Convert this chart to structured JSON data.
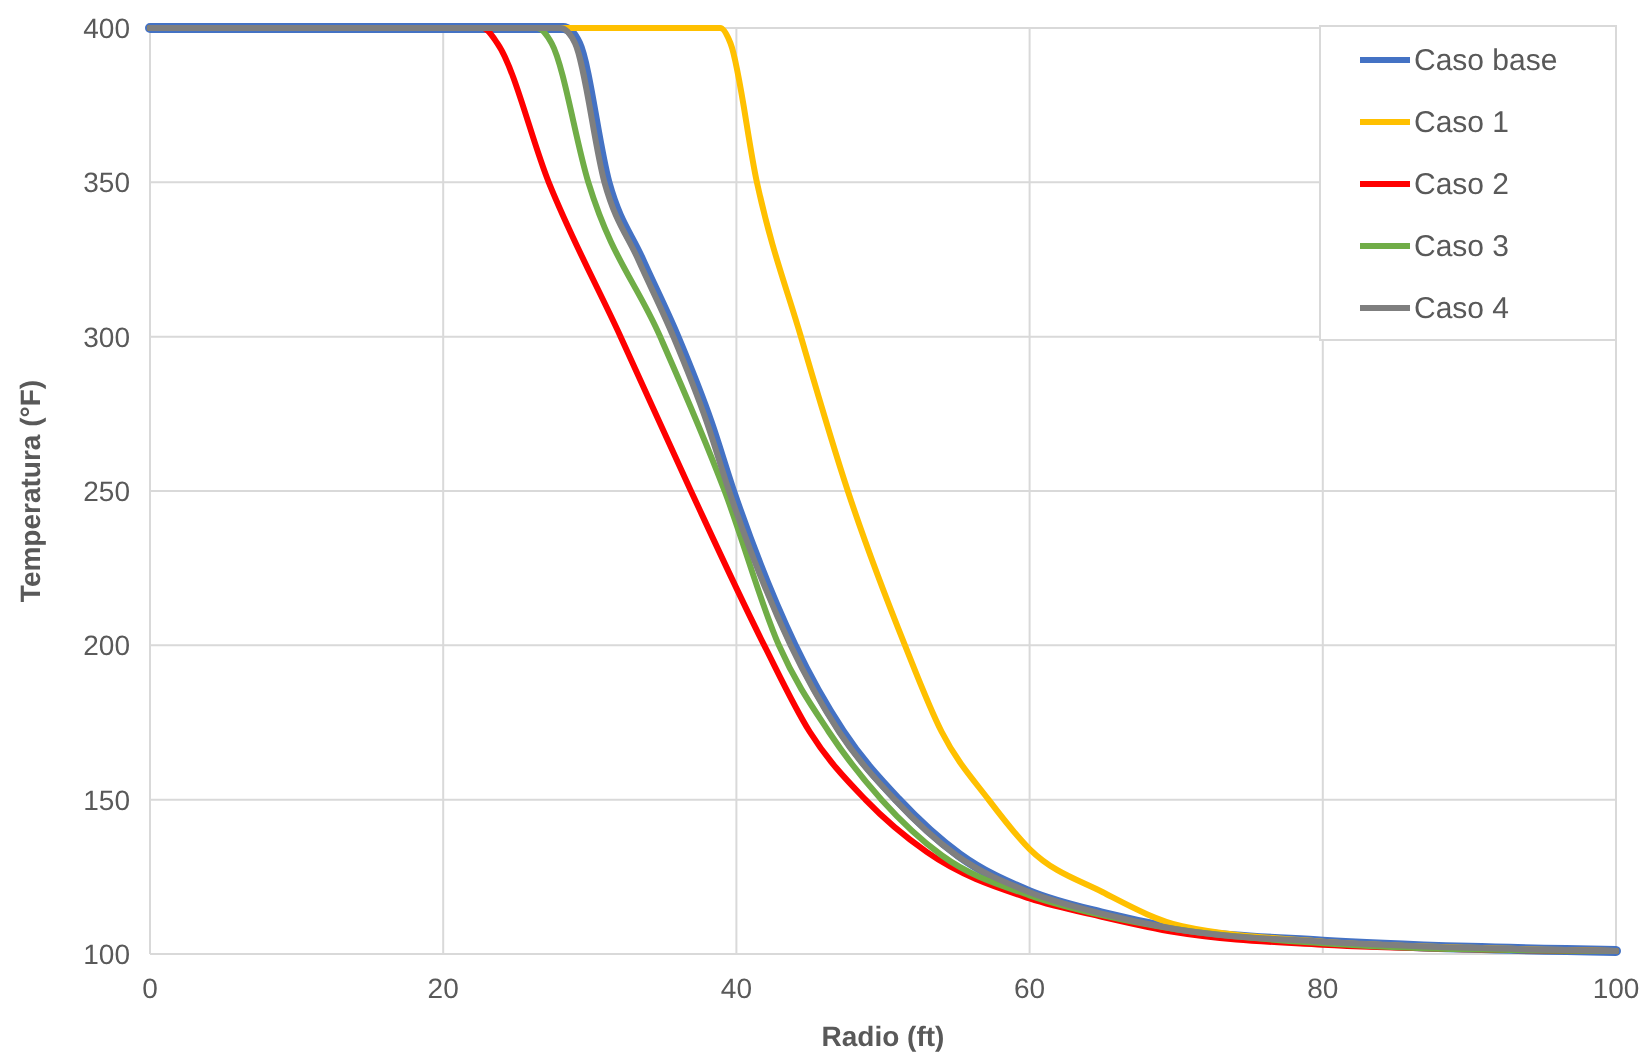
{
  "chart_data": {
    "type": "line",
    "xlabel": "Radio (ft)",
    "ylabel": "Temperatura (°F)",
    "xlim": [
      0,
      100
    ],
    "xticks": [
      0,
      20,
      40,
      60,
      80,
      100
    ],
    "ylim": [
      100,
      400
    ],
    "yticks": [
      100,
      150,
      200,
      250,
      300,
      350,
      400
    ],
    "grid": true,
    "legend": "top right",
    "marker": "none",
    "line_style": "solid",
    "series": [
      {
        "name": "Caso base",
        "color": "#4472c4",
        "x": [
          0,
          28.2,
          29.2,
          31.2,
          33.5,
          35.9,
          38.2,
          39.7,
          43.9,
          47.2,
          51,
          55.2,
          60,
          65,
          70,
          80,
          90,
          100
        ],
        "values": [
          400,
          400,
          395,
          350,
          325,
          300,
          272,
          250,
          200,
          172,
          150,
          132,
          120,
          113,
          108,
          104,
          102,
          101
        ]
      },
      {
        "name": "Caso 1",
        "color": "#ffc000",
        "x": [
          0,
          38.9,
          39.6,
          41.4,
          44.4,
          47.6,
          51.5,
          54,
          57.2,
          60,
          65,
          70.4,
          80,
          90,
          100
        ],
        "values": [
          400,
          400,
          395,
          350,
          300,
          250,
          200,
          172,
          150,
          134,
          120,
          109,
          104,
          102,
          101
        ]
      },
      {
        "name": "Caso 2",
        "color": "#ff0000",
        "x": [
          0,
          22.7,
          23.7,
          27.2,
          32.1,
          36.9,
          41.9,
          45,
          48.8,
          53,
          60,
          65,
          70,
          80,
          90,
          100
        ],
        "values": [
          400,
          400,
          395,
          350,
          300,
          250,
          200,
          172,
          150,
          133,
          118,
          112,
          107,
          103,
          101.5,
          101
        ]
      },
      {
        "name": "Caso 3",
        "color": "#70ad47",
        "x": [
          0,
          26.4,
          27.4,
          29.9,
          34.8,
          39.2,
          42.9,
          46.3,
          49.9,
          54,
          60,
          65,
          70,
          80,
          90,
          100
        ],
        "values": [
          400,
          400,
          395,
          350,
          300,
          250,
          200,
          172,
          150,
          132,
          119,
          112.5,
          108,
          103.5,
          101.5,
          101
        ]
      },
      {
        "name": "Caso 4",
        "color": "#7f7f7f",
        "x": [
          0,
          28,
          29,
          31,
          33.3,
          35.7,
          38,
          39.5,
          43.7,
          47,
          50.8,
          55,
          60,
          65,
          70,
          80,
          90,
          100
        ],
        "values": [
          400,
          400,
          395,
          350,
          325,
          300,
          272,
          250,
          200,
          172,
          150,
          132,
          120,
          113,
          108,
          104,
          102,
          101
        ]
      }
    ]
  }
}
